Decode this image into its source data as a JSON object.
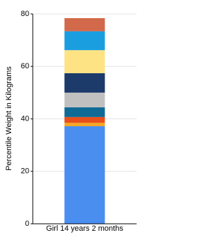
{
  "chart_data": {
    "type": "stacked-bar",
    "y_label": "Percentile Weight in Kilograms",
    "categories": [
      "Girl 14 years 2 months"
    ],
    "series": [
      {
        "color": "#4a8ef0",
        "values": [
          37.2
        ]
      },
      {
        "color": "#f5a623",
        "values": [
          1.3
        ]
      },
      {
        "color": "#e8501a",
        "values": [
          2.2
        ]
      },
      {
        "color": "#0f6b96",
        "values": [
          3.7
        ]
      },
      {
        "color": "#c0c0c0",
        "values": [
          5.6
        ]
      },
      {
        "color": "#1c3a6a",
        "values": [
          7.4
        ]
      },
      {
        "color": "#fde384",
        "values": [
          8.8
        ]
      },
      {
        "color": "#1a9ee0",
        "values": [
          7.2
        ]
      },
      {
        "color": "#d2694a",
        "values": [
          5.0
        ]
      }
    ],
    "ylim": [
      0,
      80
    ],
    "yticks": [
      0,
      20,
      40,
      60,
      80
    ],
    "grid": true
  }
}
